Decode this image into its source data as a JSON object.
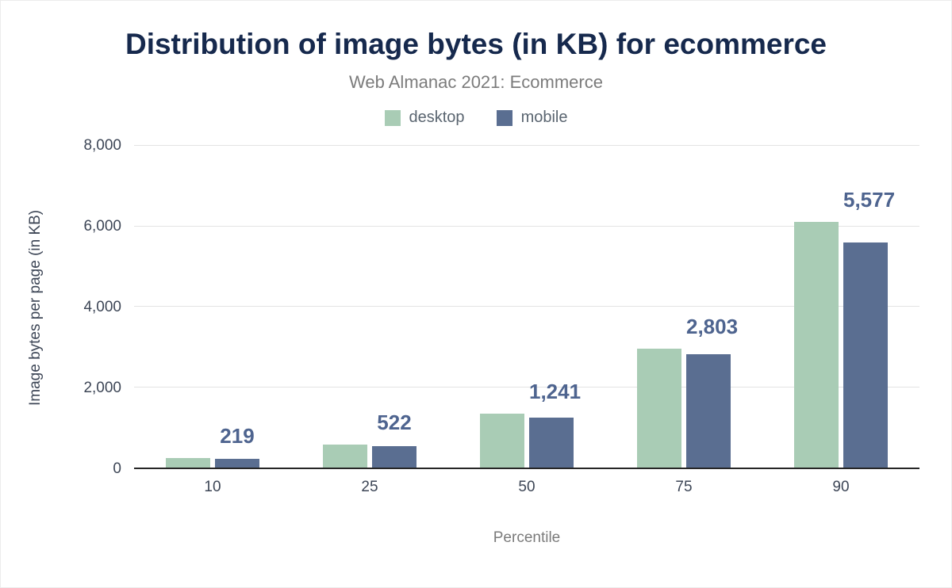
{
  "colors": {
    "title": "#16294d",
    "subtitle": "#7b7b7b",
    "axis_text": "#3d4656",
    "value_label": "#4e648f",
    "desktop": "#a9ccb5",
    "mobile": "#5a6e91"
  },
  "chart_data": {
    "type": "bar",
    "title": "Distribution of image bytes (in KB) for ecommerce",
    "subtitle": "Web Almanac 2021: Ecommerce",
    "xlabel": "Percentile",
    "ylabel": "Image bytes per page (in KB)",
    "categories": [
      "10",
      "25",
      "50",
      "75",
      "90"
    ],
    "series": [
      {
        "name": "desktop",
        "color": "#a9ccb5",
        "values": [
          245,
          570,
          1330,
          2950,
          6080
        ]
      },
      {
        "name": "mobile",
        "color": "#5a6e91",
        "values": [
          219,
          522,
          1241,
          2803,
          5577
        ]
      }
    ],
    "value_labels": [
      "219",
      "522",
      "1,241",
      "2,803",
      "5,577"
    ],
    "value_labels_series": "mobile",
    "ylim": [
      0,
      8000
    ],
    "yticks": [
      0,
      2000,
      4000,
      6000,
      8000
    ],
    "ytick_labels": [
      "0",
      "2,000",
      "4,000",
      "6,000",
      "8,000"
    ],
    "grid": "horizontal",
    "legend_position": "top"
  }
}
